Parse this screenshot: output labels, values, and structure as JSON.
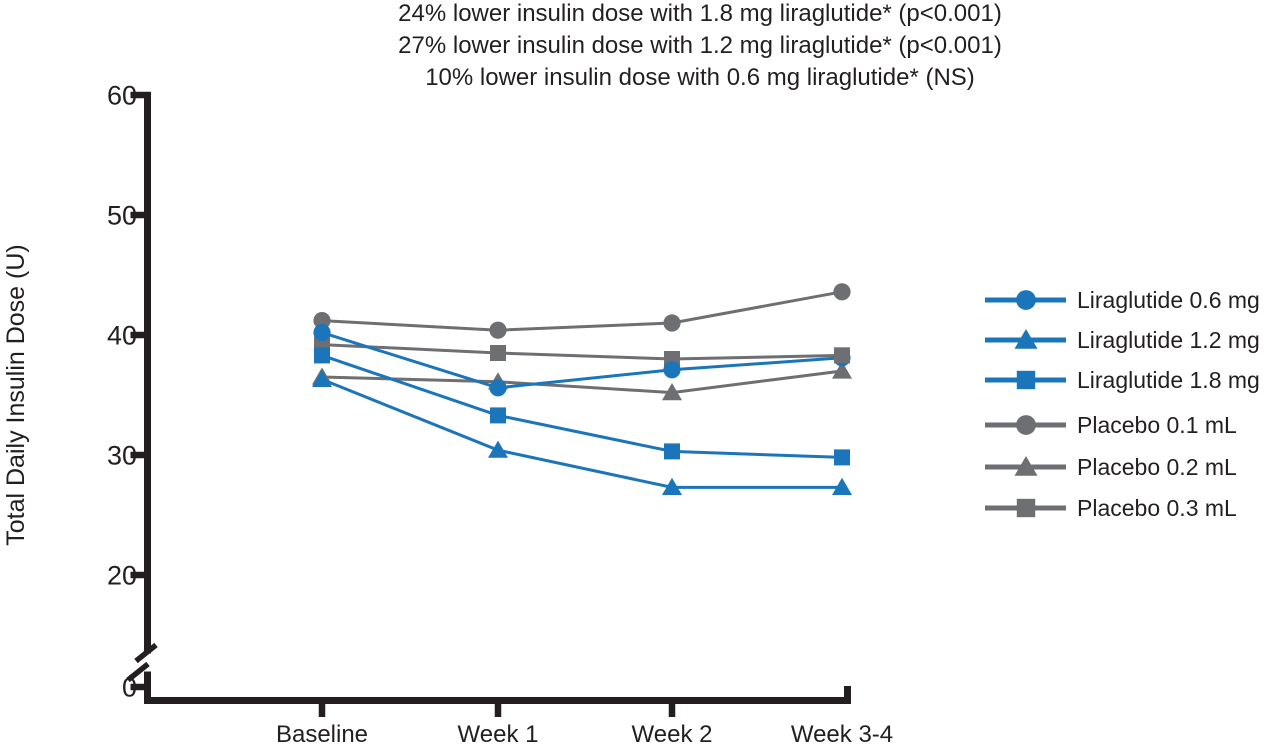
{
  "title_lines": [
    "24% lower insulin dose with 1.8 mg liraglutide* (p<0.001)",
    "27% lower insulin dose with 1.2 mg liraglutide* (p<0.001)",
    "10% lower insulin dose with 0.6 mg liraglutide* (NS)"
  ],
  "colors": {
    "liraglutide_blue": "#1b75bb",
    "placebo_gray": "#6e6f72",
    "axis_black": "#231f20"
  },
  "chart_data": {
    "type": "line",
    "title": "",
    "xlabel": "",
    "ylabel": "Total Daily Insulin Dose (U)",
    "categories": [
      "Baseline",
      "Week 1",
      "Week 2",
      "Week 3-4"
    ],
    "y_axis": {
      "ticks_top_to_bottom": [
        60,
        50,
        40,
        30,
        20,
        0
      ],
      "range_shown": [
        0,
        60
      ],
      "axis_break_between": [
        0,
        20
      ]
    },
    "grid": false,
    "legend_position": "right",
    "series": [
      {
        "name": "Liraglutide 0.6 mg",
        "marker": "circle",
        "color": "#1b75bb",
        "values": [
          40.2,
          35.6,
          37.1,
          38.1
        ]
      },
      {
        "name": "Liraglutide 1.2 mg",
        "marker": "triangle",
        "color": "#1b75bb",
        "values": [
          36.3,
          30.4,
          27.3,
          27.3
        ]
      },
      {
        "name": "Liraglutide 1.8 mg",
        "marker": "square",
        "color": "#1b75bb",
        "values": [
          38.3,
          33.3,
          30.3,
          29.8
        ]
      },
      {
        "name": "Placebo 0.1 mL",
        "marker": "circle",
        "color": "#6e6f72",
        "values": [
          41.2,
          40.4,
          41.0,
          43.6
        ]
      },
      {
        "name": "Placebo 0.2 mL",
        "marker": "triangle",
        "color": "#6e6f72",
        "values": [
          36.5,
          36.1,
          35.2,
          37.0
        ]
      },
      {
        "name": "Placebo 0.3 mL",
        "marker": "square",
        "color": "#6e6f72",
        "values": [
          39.2,
          38.5,
          38.0,
          38.3
        ]
      }
    ]
  }
}
